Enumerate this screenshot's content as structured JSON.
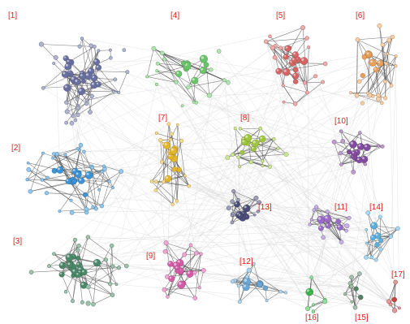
{
  "network": {
    "background_color": "#ffffff",
    "background_edge_color": "#d9d9d9",
    "edge_color": "#555555",
    "label_color": "#e0201c",
    "clusters": [
      {
        "id": 1,
        "label": "[1]",
        "color": "#6f76a8",
        "nodes": 52
      },
      {
        "id": 2,
        "label": "[2]",
        "color": "#3f9be0",
        "nodes": 46
      },
      {
        "id": 3,
        "label": "[3]",
        "color": "#4f8f6f",
        "nodes": 38
      },
      {
        "id": 4,
        "label": "[4]",
        "color": "#6fcf6f",
        "nodes": 26
      },
      {
        "id": 5,
        "label": "[5]",
        "color": "#e06a6a",
        "nodes": 30
      },
      {
        "id": 6,
        "label": "[6]",
        "color": "#f3a860",
        "nodes": 30
      },
      {
        "id": 7,
        "label": "[7]",
        "color": "#f0c030",
        "nodes": 26
      },
      {
        "id": 8,
        "label": "[8]",
        "color": "#a8d040",
        "nodes": 22
      },
      {
        "id": 9,
        "label": "[9]",
        "color": "#e060b0",
        "nodes": 24
      },
      {
        "id": 10,
        "label": "[10]",
        "color": "#8a4fa8",
        "nodes": 20
      },
      {
        "id": 11,
        "label": "[11]",
        "color": "#a070d0",
        "nodes": 18
      },
      {
        "id": 12,
        "label": "[12]",
        "color": "#70b0e0",
        "nodes": 16
      },
      {
        "id": 13,
        "label": "[13]",
        "color": "#50507f",
        "nodes": 18
      },
      {
        "id": 14,
        "label": "[14]",
        "color": "#60b8e8",
        "nodes": 16
      },
      {
        "id": 15,
        "label": "[15]",
        "color": "#5a8a6a",
        "nodes": 10
      },
      {
        "id": 16,
        "label": "[16]",
        "color": "#40c050",
        "nodes": 8
      },
      {
        "id": 17,
        "label": "[17]",
        "color": "#d04848",
        "nodes": 6
      }
    ]
  }
}
